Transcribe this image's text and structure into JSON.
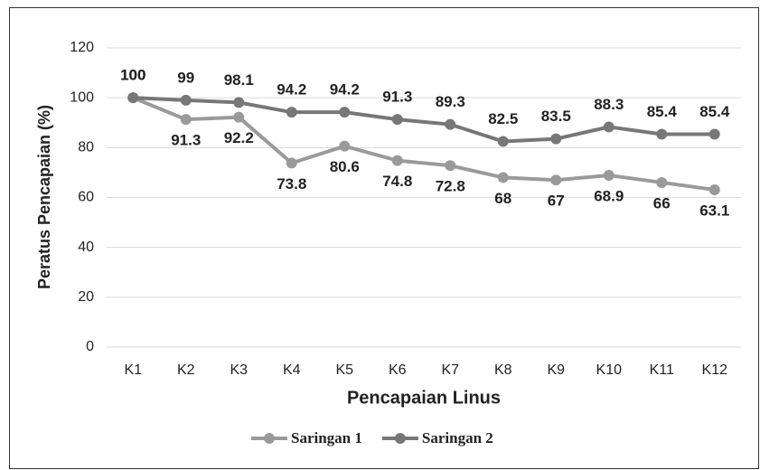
{
  "chart_data": {
    "type": "line",
    "x_label": "Pencapaian Linus",
    "y_label": "Peratus Pencapaian (%)",
    "categories": [
      "K1",
      "K2",
      "K3",
      "K4",
      "K5",
      "K6",
      "K7",
      "K8",
      "K9",
      "K10",
      "K11",
      "K12"
    ],
    "series": [
      {
        "name": "Saringan 1",
        "color": "#9a9a9a",
        "values": [
          100,
          91.3,
          92.2,
          73.8,
          80.6,
          74.8,
          72.8,
          68,
          67,
          68.9,
          66,
          63.1
        ]
      },
      {
        "name": "Saringan 2",
        "color": "#777777",
        "values": [
          100,
          99,
          98.1,
          94.2,
          94.2,
          91.3,
          89.3,
          82.5,
          83.5,
          88.3,
          85.4,
          85.4
        ]
      }
    ],
    "ylim": [
      0,
      120
    ],
    "yticks": [
      0,
      20,
      40,
      60,
      80,
      100,
      120
    ],
    "grid": true,
    "legend": "bottom"
  }
}
